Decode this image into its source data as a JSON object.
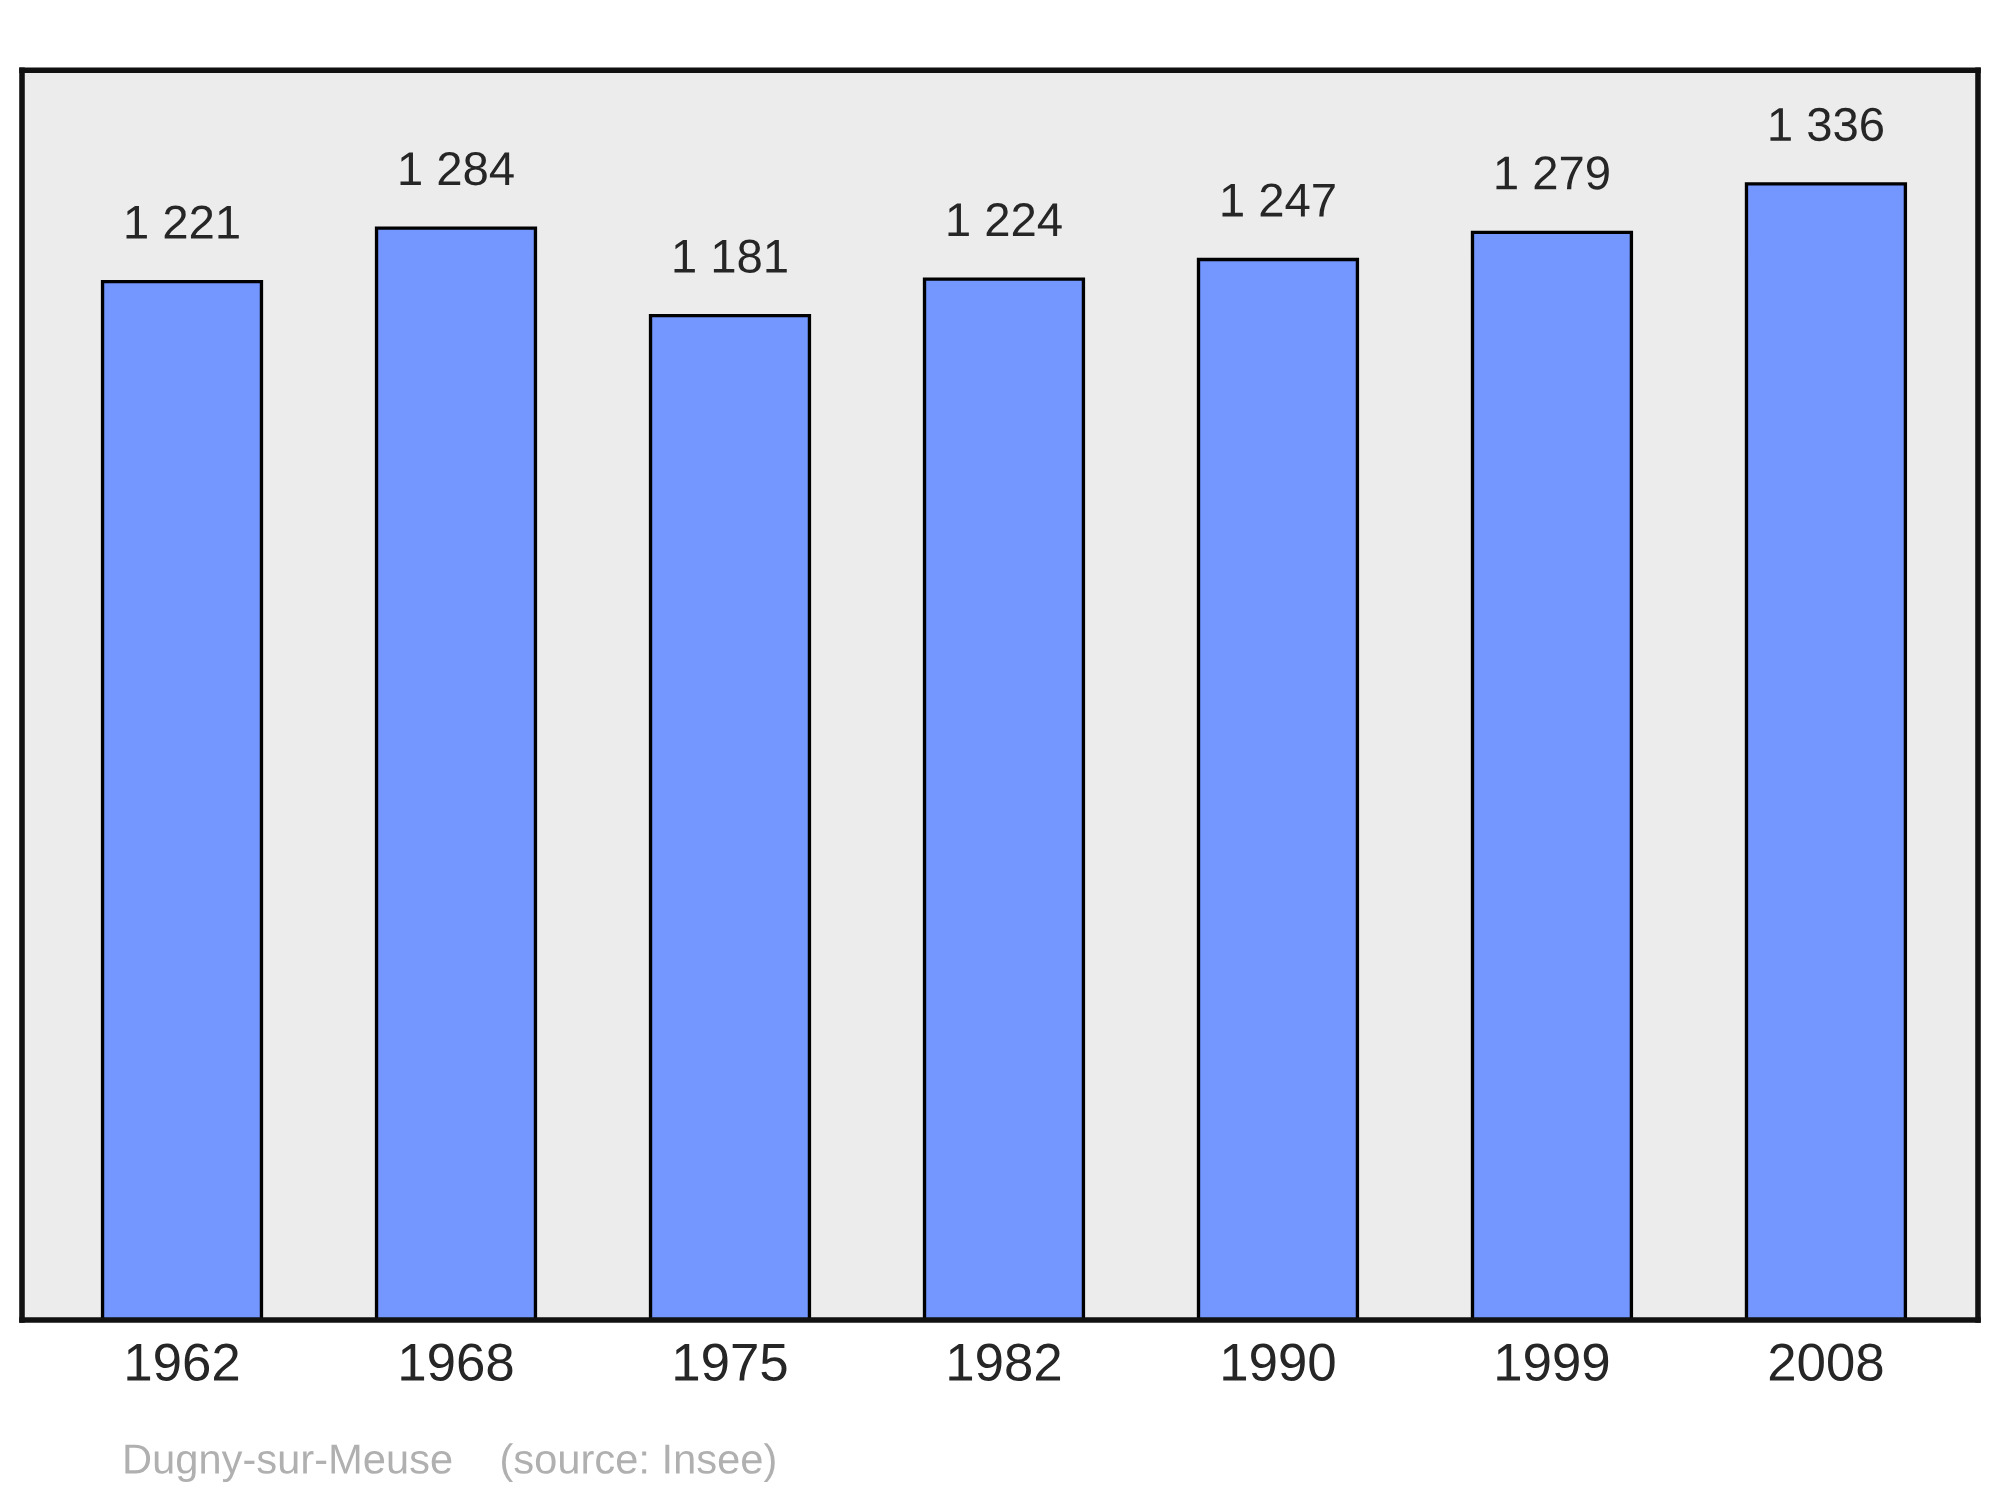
{
  "chart_data": {
    "type": "bar",
    "categories": [
      "1962",
      "1968",
      "1975",
      "1982",
      "1990",
      "1999",
      "2008"
    ],
    "values": [
      1221,
      1284,
      1181,
      1224,
      1247,
      1279,
      1336
    ],
    "value_labels": [
      "1 221",
      "1 284",
      "1 181",
      "1 224",
      "1 247",
      "1 279",
      "1 336"
    ],
    "color": "#7396ff",
    "grid": false,
    "legend": false,
    "tick_labels": "x",
    "annotations": [
      "Dugny-sur-Meuse    (source: Insee)"
    ]
  }
}
